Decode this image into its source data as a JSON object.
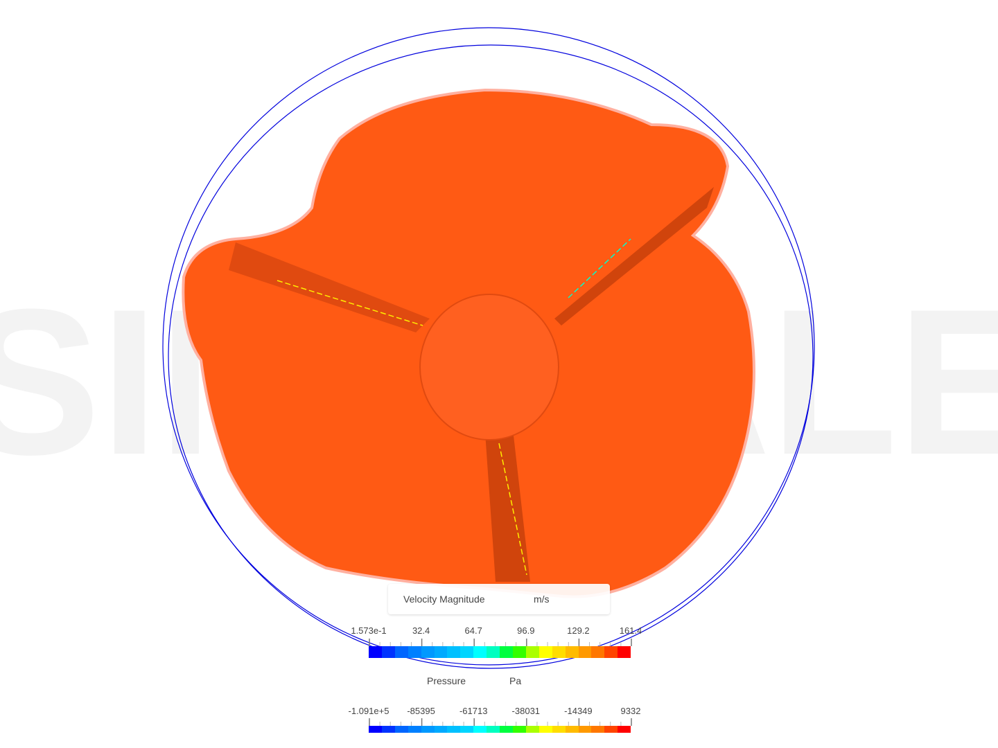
{
  "watermark": "SIMSCALE",
  "colors": {
    "surface": "#ff5a14",
    "surface_dark": "#e84a0c",
    "domain_circle": "#0000dd",
    "watermark": "#f2f2f2"
  },
  "colormap": [
    "#0000ff",
    "#0033ff",
    "#0066ff",
    "#0080ff",
    "#0099ff",
    "#00aaff",
    "#00c0ff",
    "#00d5ff",
    "#00ffff",
    "#00ffc0",
    "#00ff40",
    "#33ff00",
    "#aaff00",
    "#ffff00",
    "#ffdd00",
    "#ffbb00",
    "#ff9900",
    "#ff7700",
    "#ff4400",
    "#ff0000"
  ],
  "legends": [
    {
      "title": "Velocity Magnitude",
      "unit": "m/s",
      "ticks": [
        "1.573e-1",
        "32.4",
        "64.7",
        "96.9",
        "129.2",
        "161.4"
      ]
    },
    {
      "title": "Pressure",
      "unit": "Pa",
      "ticks": [
        "-1.091e+5",
        "-85395",
        "-61713",
        "-38031",
        "-14349",
        "9332"
      ]
    }
  ]
}
